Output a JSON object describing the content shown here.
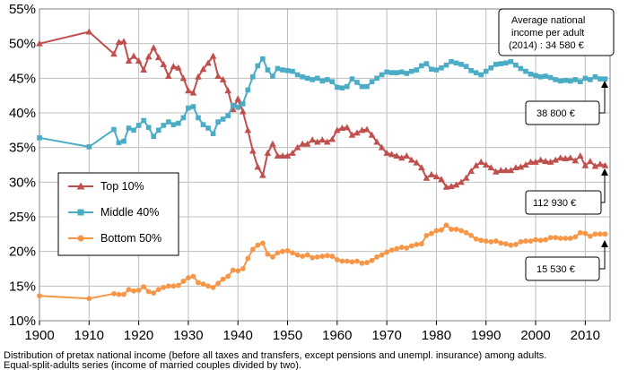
{
  "chart_data": {
    "type": "line",
    "xlim": [
      1900,
      2015
    ],
    "ylim": [
      10,
      55
    ],
    "x_ticks": [
      "1900",
      "1910",
      "1920",
      "1930",
      "1940",
      "1950",
      "1960",
      "1970",
      "1980",
      "1990",
      "2000",
      "2010"
    ],
    "y_ticks": [
      "10%",
      "15%",
      "20%",
      "25%",
      "30%",
      "35%",
      "40%",
      "45%",
      "50%",
      "55%"
    ],
    "grid": true,
    "legend_position": "left",
    "notes": [
      "Distribution of pretax national income (before all taxes and transfers, except pensions and unempl. insurance) among adults.",
      "Equal-split-adults series (income of married couples divided by two)."
    ],
    "info_box": [
      "Average national",
      "income per adult",
      "(2014) : 34 580 €"
    ],
    "callouts": [
      "38 800 €",
      "112 930 €",
      "15 530 €"
    ],
    "series": [
      {
        "name": "Top 10%",
        "color": "#c0504d",
        "marker": "triangle",
        "points": [
          [
            1900,
            50
          ],
          [
            1910,
            51.7
          ],
          [
            1915,
            48.5
          ],
          [
            1916,
            50.2
          ],
          [
            1917,
            50.3
          ],
          [
            1918,
            47.5
          ],
          [
            1919,
            48.2
          ],
          [
            1920,
            47.5
          ],
          [
            1921,
            46.2
          ],
          [
            1922,
            48.1
          ],
          [
            1923,
            49.4
          ],
          [
            1924,
            48
          ],
          [
            1925,
            47
          ],
          [
            1926,
            45.3
          ],
          [
            1927,
            46.7
          ],
          [
            1928,
            46.5
          ],
          [
            1929,
            45
          ],
          [
            1930,
            43.2
          ],
          [
            1931,
            42.9
          ],
          [
            1932,
            45.2
          ],
          [
            1933,
            46.3
          ],
          [
            1934,
            47.2
          ],
          [
            1935,
            48.2
          ],
          [
            1936,
            45.3
          ],
          [
            1937,
            44.8
          ],
          [
            1938,
            43.2
          ],
          [
            1939,
            40.5
          ],
          [
            1940,
            42
          ],
          [
            1941,
            40.2
          ],
          [
            1942,
            37.5
          ],
          [
            1943,
            34.5
          ],
          [
            1944,
            32.2
          ],
          [
            1945,
            31
          ],
          [
            1946,
            34.2
          ],
          [
            1947,
            35.5
          ],
          [
            1948,
            33.8
          ],
          [
            1949,
            33.8
          ],
          [
            1950,
            33.8
          ],
          [
            1951,
            34.2
          ],
          [
            1952,
            35
          ],
          [
            1953,
            35.5
          ],
          [
            1954,
            35.5
          ],
          [
            1955,
            36.1
          ],
          [
            1956,
            35.8
          ],
          [
            1957,
            36.1
          ],
          [
            1958,
            35.8
          ],
          [
            1959,
            36.2
          ],
          [
            1960,
            37.5
          ],
          [
            1961,
            37.8
          ],
          [
            1962,
            37.9
          ],
          [
            1963,
            36.8
          ],
          [
            1964,
            37.1
          ],
          [
            1965,
            37.5
          ],
          [
            1966,
            37.6
          ],
          [
            1967,
            36.8
          ],
          [
            1968,
            35.8
          ],
          [
            1969,
            35
          ],
          [
            1970,
            34.2
          ],
          [
            1971,
            34
          ],
          [
            1972,
            33.8
          ],
          [
            1973,
            33.5
          ],
          [
            1974,
            33.8
          ],
          [
            1975,
            33.2
          ],
          [
            1976,
            32.8
          ],
          [
            1977,
            32.1
          ],
          [
            1978,
            30.6
          ],
          [
            1979,
            31.1
          ],
          [
            1980,
            30.8
          ],
          [
            1981,
            30.4
          ],
          [
            1982,
            29.3
          ],
          [
            1983,
            29.4
          ],
          [
            1984,
            29.6
          ],
          [
            1985,
            30
          ],
          [
            1986,
            30.6
          ],
          [
            1987,
            31.6
          ],
          [
            1988,
            32.4
          ],
          [
            1989,
            32.9
          ],
          [
            1990,
            32.5
          ],
          [
            1991,
            32.1
          ],
          [
            1992,
            31.5
          ],
          [
            1993,
            31.7
          ],
          [
            1994,
            31.7
          ],
          [
            1995,
            31.7
          ],
          [
            1996,
            32.1
          ],
          [
            1997,
            32.2
          ],
          [
            1998,
            32.5
          ],
          [
            1999,
            32.9
          ],
          [
            2000,
            32.9
          ],
          [
            2001,
            33.2
          ],
          [
            2002,
            33
          ],
          [
            2003,
            32.9
          ],
          [
            2004,
            33.2
          ],
          [
            2005,
            33.5
          ],
          [
            2006,
            33.4
          ],
          [
            2007,
            33.5
          ],
          [
            2008,
            33.1
          ],
          [
            2009,
            33.8
          ],
          [
            2010,
            32.4
          ],
          [
            2011,
            33
          ],
          [
            2012,
            32.3
          ],
          [
            2013,
            32.6
          ],
          [
            2014,
            32.4
          ]
        ]
      },
      {
        "name": "Middle 40%",
        "color": "#4bacc6",
        "marker": "square",
        "points": [
          [
            1900,
            36.4
          ],
          [
            1910,
            35.1
          ],
          [
            1915,
            37.6
          ],
          [
            1916,
            35.7
          ],
          [
            1917,
            35.9
          ],
          [
            1918,
            37.8
          ],
          [
            1919,
            37.5
          ],
          [
            1920,
            38.2
          ],
          [
            1921,
            38.9
          ],
          [
            1922,
            37.9
          ],
          [
            1923,
            36.6
          ],
          [
            1924,
            37.5
          ],
          [
            1925,
            38.2
          ],
          [
            1926,
            38.7
          ],
          [
            1927,
            38.3
          ],
          [
            1928,
            38.5
          ],
          [
            1929,
            39.3
          ],
          [
            1930,
            40.7
          ],
          [
            1931,
            40.9
          ],
          [
            1932,
            39.3
          ],
          [
            1933,
            38.3
          ],
          [
            1934,
            37.8
          ],
          [
            1935,
            37
          ],
          [
            1936,
            38.7
          ],
          [
            1937,
            39.1
          ],
          [
            1938,
            39.6
          ],
          [
            1939,
            41.1
          ],
          [
            1940,
            40.8
          ],
          [
            1941,
            41.3
          ],
          [
            1942,
            43.3
          ],
          [
            1943,
            45.2
          ],
          [
            1944,
            46.8
          ],
          [
            1945,
            47.8
          ],
          [
            1946,
            46.2
          ],
          [
            1947,
            45.3
          ],
          [
            1948,
            46.4
          ],
          [
            1949,
            46.2
          ],
          [
            1950,
            46.1
          ],
          [
            1951,
            46
          ],
          [
            1952,
            45.5
          ],
          [
            1953,
            45.2
          ],
          [
            1954,
            45
          ],
          [
            1955,
            44.8
          ],
          [
            1956,
            45
          ],
          [
            1957,
            44.6
          ],
          [
            1958,
            44.8
          ],
          [
            1959,
            44.5
          ],
          [
            1960,
            43.7
          ],
          [
            1961,
            43.6
          ],
          [
            1962,
            43.8
          ],
          [
            1963,
            44.9
          ],
          [
            1964,
            44.4
          ],
          [
            1965,
            43.8
          ],
          [
            1966,
            43.8
          ],
          [
            1967,
            44.5
          ],
          [
            1968,
            45
          ],
          [
            1969,
            45.5
          ],
          [
            1970,
            45.9
          ],
          [
            1971,
            45.8
          ],
          [
            1972,
            45.8
          ],
          [
            1973,
            45.9
          ],
          [
            1974,
            45.7
          ],
          [
            1975,
            46
          ],
          [
            1976,
            46.2
          ],
          [
            1977,
            46.8
          ],
          [
            1978,
            47.1
          ],
          [
            1979,
            46.3
          ],
          [
            1980,
            46.2
          ],
          [
            1981,
            46.5
          ],
          [
            1982,
            46.9
          ],
          [
            1983,
            47.4
          ],
          [
            1984,
            47.2
          ],
          [
            1985,
            47
          ],
          [
            1986,
            46.7
          ],
          [
            1987,
            46.1
          ],
          [
            1988,
            45.8
          ],
          [
            1989,
            45.5
          ],
          [
            1990,
            46
          ],
          [
            1991,
            46.5
          ],
          [
            1992,
            47
          ],
          [
            1993,
            47.1
          ],
          [
            1994,
            47.2
          ],
          [
            1995,
            47.4
          ],
          [
            1996,
            46.9
          ],
          [
            1997,
            46.4
          ],
          [
            1998,
            46
          ],
          [
            1999,
            45.6
          ],
          [
            2000,
            45.4
          ],
          [
            2001,
            45.2
          ],
          [
            2002,
            45.3
          ],
          [
            2003,
            45.1
          ],
          [
            2004,
            44.8
          ],
          [
            2005,
            44.6
          ],
          [
            2006,
            44.7
          ],
          [
            2007,
            44.6
          ],
          [
            2008,
            44.8
          ],
          [
            2009,
            44.5
          ],
          [
            2010,
            45
          ],
          [
            2011,
            44.8
          ],
          [
            2012,
            45.2
          ],
          [
            2013,
            44.9
          ],
          [
            2014,
            44.9
          ]
        ]
      },
      {
        "name": "Bottom 50%",
        "color": "#f79646",
        "marker": "circle",
        "points": [
          [
            1900,
            13.6
          ],
          [
            1910,
            13.2
          ],
          [
            1915,
            13.9
          ],
          [
            1916,
            13.8
          ],
          [
            1917,
            13.8
          ],
          [
            1918,
            14.5
          ],
          [
            1919,
            14.3
          ],
          [
            1920,
            14.4
          ],
          [
            1921,
            14.9
          ],
          [
            1922,
            14.2
          ],
          [
            1923,
            14
          ],
          [
            1924,
            14.5
          ],
          [
            1925,
            14.8
          ],
          [
            1926,
            15
          ],
          [
            1927,
            15
          ],
          [
            1928,
            15.1
          ],
          [
            1929,
            15.7
          ],
          [
            1930,
            16.2
          ],
          [
            1931,
            16.4
          ],
          [
            1932,
            15.5
          ],
          [
            1933,
            15.3
          ],
          [
            1934,
            15
          ],
          [
            1935,
            14.8
          ],
          [
            1936,
            15.4
          ],
          [
            1937,
            16
          ],
          [
            1938,
            16.4
          ],
          [
            1939,
            17.3
          ],
          [
            1940,
            17.2
          ],
          [
            1941,
            17.5
          ],
          [
            1942,
            19
          ],
          [
            1943,
            20.3
          ],
          [
            1944,
            20.9
          ],
          [
            1945,
            21.2
          ],
          [
            1946,
            19.6
          ],
          [
            1947,
            19.2
          ],
          [
            1948,
            19.8
          ],
          [
            1949,
            20
          ],
          [
            1950,
            20.1
          ],
          [
            1951,
            19.8
          ],
          [
            1952,
            19.5
          ],
          [
            1953,
            19.3
          ],
          [
            1954,
            19.5
          ],
          [
            1955,
            19.1
          ],
          [
            1956,
            19.2
          ],
          [
            1957,
            19.3
          ],
          [
            1958,
            19.4
          ],
          [
            1959,
            19.3
          ],
          [
            1960,
            18.8
          ],
          [
            1961,
            18.6
          ],
          [
            1962,
            18.6
          ],
          [
            1963,
            18.5
          ],
          [
            1964,
            18.6
          ],
          [
            1965,
            18.3
          ],
          [
            1966,
            18.4
          ],
          [
            1967,
            18.7
          ],
          [
            1968,
            19.2
          ],
          [
            1969,
            19.5
          ],
          [
            1970,
            19.9
          ],
          [
            1971,
            20.2
          ],
          [
            1972,
            20.4
          ],
          [
            1973,
            20.6
          ],
          [
            1974,
            20.5
          ],
          [
            1975,
            20.8
          ],
          [
            1976,
            21
          ],
          [
            1977,
            21.1
          ],
          [
            1978,
            22.3
          ],
          [
            1979,
            22.6
          ],
          [
            1980,
            23
          ],
          [
            1981,
            23.1
          ],
          [
            1982,
            23.8
          ],
          [
            1983,
            23.2
          ],
          [
            1984,
            23.2
          ],
          [
            1985,
            23
          ],
          [
            1986,
            22.7
          ],
          [
            1987,
            22.3
          ],
          [
            1988,
            21.8
          ],
          [
            1989,
            21.6
          ],
          [
            1990,
            21.5
          ],
          [
            1991,
            21.4
          ],
          [
            1992,
            21.5
          ],
          [
            1993,
            21.2
          ],
          [
            1994,
            21.1
          ],
          [
            1995,
            20.9
          ],
          [
            1996,
            21
          ],
          [
            1997,
            21.4
          ],
          [
            1998,
            21.5
          ],
          [
            1999,
            21.5
          ],
          [
            2000,
            21.7
          ],
          [
            2001,
            21.6
          ],
          [
            2002,
            21.7
          ],
          [
            2003,
            22
          ],
          [
            2004,
            22
          ],
          [
            2005,
            21.9
          ],
          [
            2006,
            21.9
          ],
          [
            2007,
            21.9
          ],
          [
            2008,
            22.1
          ],
          [
            2009,
            22.7
          ],
          [
            2010,
            22.6
          ],
          [
            2011,
            22.2
          ],
          [
            2012,
            22.5
          ],
          [
            2013,
            22.5
          ],
          [
            2014,
            22.5
          ]
        ]
      }
    ]
  }
}
